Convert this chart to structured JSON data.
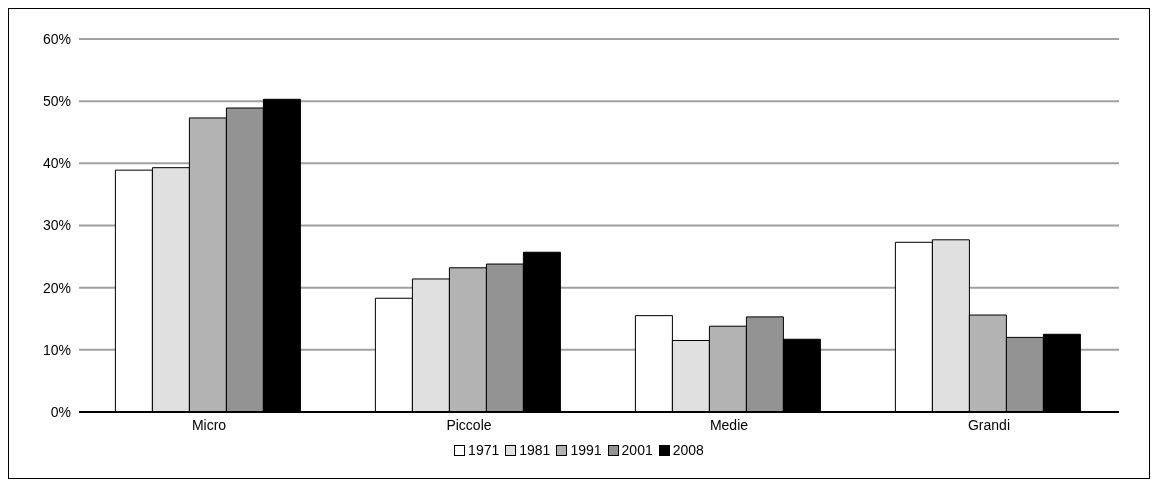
{
  "chart_data": {
    "type": "bar",
    "categories": [
      "Micro",
      "Piccole",
      "Medie",
      "Grandi"
    ],
    "series": [
      {
        "name": "1971",
        "color": "#ffffff",
        "values": [
          38.9,
          18.3,
          15.5,
          27.3
        ]
      },
      {
        "name": "1981",
        "color": "#e0e0e0",
        "values": [
          39.3,
          21.4,
          11.5,
          27.7
        ]
      },
      {
        "name": "1991",
        "color": "#b3b3b3",
        "values": [
          47.3,
          23.2,
          13.8,
          15.6
        ]
      },
      {
        "name": "2001",
        "color": "#939393",
        "values": [
          48.9,
          23.8,
          15.3,
          12.0
        ]
      },
      {
        "name": "2008",
        "color": "#000000",
        "values": [
          50.3,
          25.7,
          11.7,
          12.5
        ]
      }
    ],
    "ylim": [
      0,
      60
    ],
    "yticks": [
      {
        "value": 0,
        "label": "0%"
      },
      {
        "value": 10,
        "label": "10%"
      },
      {
        "value": 20,
        "label": "20%"
      },
      {
        "value": 30,
        "label": "30%"
      },
      {
        "value": 40,
        "label": "40%"
      },
      {
        "value": 50,
        "label": "50%"
      },
      {
        "value": 60,
        "label": "60%"
      }
    ],
    "grid": "y",
    "legend": "bottom"
  }
}
